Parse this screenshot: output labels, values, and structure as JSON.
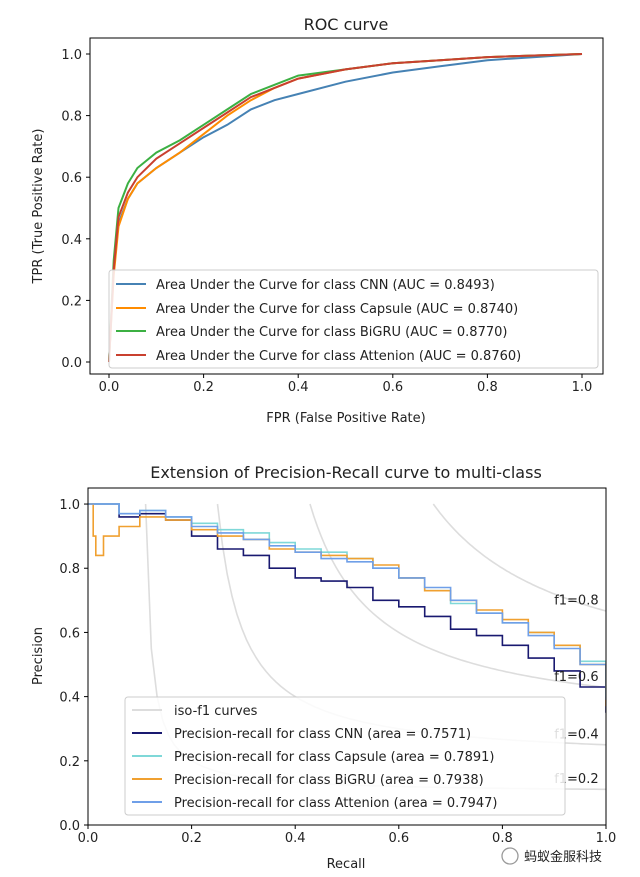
{
  "chart_data": [
    {
      "type": "line",
      "title": "ROC curve",
      "xlabel": "FPR (False Positive Rate)",
      "ylabel": "TPR (True Positive Rate)",
      "xlim": [
        0,
        1
      ],
      "ylim": [
        0,
        1
      ],
      "xticks": [
        "0.0",
        "0.2",
        "0.4",
        "0.6",
        "0.8",
        "1.0"
      ],
      "yticks": [
        "0.0",
        "0.2",
        "0.4",
        "0.6",
        "0.8",
        "1.0"
      ],
      "legend_position": "lower-right",
      "series": [
        {
          "name": "Area Under the Curve for class CNN (AUC = 0.8493)",
          "color": "#4682b4",
          "x": [
            0,
            0.01,
            0.02,
            0.04,
            0.06,
            0.1,
            0.15,
            0.2,
            0.25,
            0.3,
            0.35,
            0.4,
            0.5,
            0.6,
            0.7,
            0.8,
            0.9,
            1.0
          ],
          "y": [
            0,
            0.3,
            0.45,
            0.53,
            0.58,
            0.63,
            0.68,
            0.73,
            0.77,
            0.82,
            0.85,
            0.87,
            0.91,
            0.94,
            0.96,
            0.98,
            0.99,
            1.0
          ]
        },
        {
          "name": "Area Under the Curve for class Capsule (AUC = 0.8740)",
          "color": "#ff8c00",
          "x": [
            0,
            0.01,
            0.02,
            0.04,
            0.06,
            0.1,
            0.15,
            0.2,
            0.25,
            0.3,
            0.35,
            0.4,
            0.5,
            0.6,
            0.7,
            0.8,
            0.9,
            1.0
          ],
          "y": [
            0,
            0.28,
            0.44,
            0.53,
            0.58,
            0.63,
            0.68,
            0.74,
            0.8,
            0.85,
            0.89,
            0.92,
            0.95,
            0.97,
            0.98,
            0.99,
            0.995,
            1.0
          ]
        },
        {
          "name": "Area Under the Curve for class BiGRU (AUC = 0.8770)",
          "color": "#3cb043",
          "x": [
            0,
            0.01,
            0.02,
            0.04,
            0.06,
            0.1,
            0.15,
            0.2,
            0.25,
            0.3,
            0.35,
            0.4,
            0.5,
            0.6,
            0.7,
            0.8,
            0.9,
            1.0
          ],
          "y": [
            0,
            0.33,
            0.5,
            0.58,
            0.63,
            0.68,
            0.72,
            0.77,
            0.82,
            0.87,
            0.9,
            0.93,
            0.95,
            0.97,
            0.98,
            0.99,
            0.995,
            1.0
          ]
        },
        {
          "name": "Area Under the Curve for class Attenion (AUC = 0.8760)",
          "color": "#c9402f",
          "x": [
            0,
            0.01,
            0.02,
            0.04,
            0.06,
            0.1,
            0.15,
            0.2,
            0.25,
            0.3,
            0.35,
            0.4,
            0.5,
            0.6,
            0.7,
            0.8,
            0.9,
            1.0
          ],
          "y": [
            0,
            0.3,
            0.47,
            0.55,
            0.6,
            0.66,
            0.71,
            0.76,
            0.81,
            0.86,
            0.89,
            0.92,
            0.95,
            0.97,
            0.98,
            0.99,
            0.995,
            1.0
          ]
        }
      ]
    },
    {
      "type": "line",
      "title": "Extension of Precision-Recall curve to multi-class",
      "xlabel": "Recall",
      "ylabel": "Precision",
      "xlim": [
        0,
        1
      ],
      "ylim": [
        0,
        1.05
      ],
      "xticks": [
        "0.0",
        "0.2",
        "0.4",
        "0.6",
        "0.8",
        "1.0"
      ],
      "yticks": [
        "0.0",
        "0.2",
        "0.4",
        "0.6",
        "0.8",
        "1.0"
      ],
      "legend_position": "lower-left",
      "iso_f1": {
        "label": "iso-f1 curves",
        "color": "#dddddd",
        "levels": [
          0.2,
          0.4,
          0.6,
          0.8
        ],
        "annotations": [
          "f1=0.2",
          "f1=0.4",
          "f1=0.6",
          "f1=0.8"
        ]
      },
      "series": [
        {
          "name": "Precision-recall for class CNN (area = 0.7571)",
          "color": "#191970",
          "x": [
            0,
            0.06,
            0.1,
            0.15,
            0.2,
            0.25,
            0.3,
            0.35,
            0.4,
            0.45,
            0.5,
            0.55,
            0.6,
            0.65,
            0.7,
            0.75,
            0.8,
            0.85,
            0.9,
            0.95,
            1.0
          ],
          "y": [
            1.0,
            0.96,
            0.97,
            0.95,
            0.9,
            0.86,
            0.84,
            0.8,
            0.77,
            0.76,
            0.74,
            0.7,
            0.68,
            0.65,
            0.61,
            0.59,
            0.56,
            0.52,
            0.48,
            0.43,
            0.35
          ]
        },
        {
          "name": "Precision-recall for class Capsule (area = 0.7891)",
          "color": "#7fd8d8",
          "x": [
            0,
            0.06,
            0.1,
            0.15,
            0.2,
            0.25,
            0.3,
            0.35,
            0.4,
            0.45,
            0.5,
            0.55,
            0.6,
            0.65,
            0.7,
            0.75,
            0.8,
            0.85,
            0.9,
            0.95,
            1.0
          ],
          "y": [
            1.0,
            0.97,
            0.98,
            0.96,
            0.94,
            0.92,
            0.91,
            0.88,
            0.86,
            0.85,
            0.83,
            0.8,
            0.77,
            0.73,
            0.69,
            0.66,
            0.63,
            0.6,
            0.56,
            0.51,
            0.4
          ]
        },
        {
          "name": "Precision-recall for class BiGRU (area = 0.7938)",
          "color": "#f0a030",
          "x": [
            0,
            0.01,
            0.015,
            0.03,
            0.06,
            0.1,
            0.15,
            0.2,
            0.25,
            0.3,
            0.35,
            0.4,
            0.45,
            0.5,
            0.55,
            0.6,
            0.65,
            0.7,
            0.75,
            0.8,
            0.85,
            0.9,
            0.95,
            1.0
          ],
          "y": [
            1.0,
            0.9,
            0.84,
            0.9,
            0.93,
            0.96,
            0.95,
            0.92,
            0.9,
            0.89,
            0.86,
            0.85,
            0.84,
            0.83,
            0.81,
            0.77,
            0.73,
            0.7,
            0.67,
            0.64,
            0.6,
            0.56,
            0.5,
            0.37
          ]
        },
        {
          "name": "Precision-recall for class Attenion (area = 0.7947)",
          "color": "#6f9fe8",
          "x": [
            0,
            0.06,
            0.1,
            0.15,
            0.2,
            0.25,
            0.3,
            0.35,
            0.4,
            0.45,
            0.5,
            0.55,
            0.6,
            0.65,
            0.7,
            0.75,
            0.8,
            0.85,
            0.9,
            0.95,
            1.0
          ],
          "y": [
            1.0,
            0.97,
            0.98,
            0.96,
            0.93,
            0.91,
            0.89,
            0.87,
            0.85,
            0.83,
            0.82,
            0.8,
            0.77,
            0.74,
            0.7,
            0.66,
            0.63,
            0.59,
            0.55,
            0.5,
            0.39
          ]
        }
      ]
    }
  ],
  "watermark": "蚂蚁金服科技"
}
